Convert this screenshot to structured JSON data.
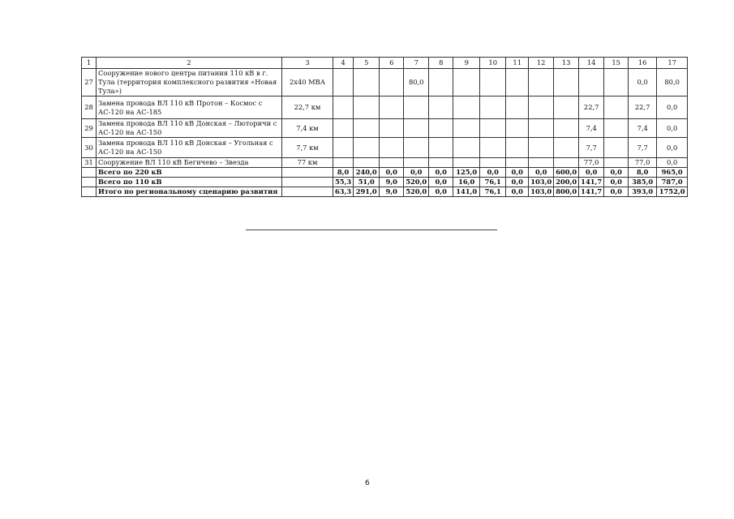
{
  "table": {
    "header": [
      "1",
      "2",
      "3",
      "4",
      "5",
      "6",
      "7",
      "8",
      "9",
      "10",
      "11",
      "12",
      "13",
      "14",
      "15",
      "16",
      "17"
    ],
    "rows": [
      [
        "27",
        "Сооружение  нового центра питания 110 кВ в г. Тула (территория комплексного развития «Новая Тула»)",
        "2х40 МВА",
        "",
        "",
        "",
        "80,0",
        "",
        "",
        "",
        "",
        "",
        "",
        "",
        "",
        "0,0",
        "80,0"
      ],
      [
        "28",
        "Замена провода ВЛ 110 кВ Протон – Космос с АС-120 на АС-185",
        "22,7 км",
        "",
        "",
        "",
        "",
        "",
        "",
        "",
        "",
        "",
        "",
        "22,7",
        "",
        "22,7",
        "0,0"
      ],
      [
        "29",
        "Замена провода ВЛ 110 кВ Донская – Люторичи с АС-120 на АС-150",
        "7,4 км",
        "",
        "",
        "",
        "",
        "",
        "",
        "",
        "",
        "",
        "",
        "7,4",
        "",
        "7,4",
        "0,0"
      ],
      [
        "30",
        "Замена провода ВЛ 110 кВ Донская – Угольная с АС-120 на АС-150",
        "7,7 км",
        "",
        "",
        "",
        "",
        "",
        "",
        "",
        "",
        "",
        "",
        "7,7",
        "",
        "7,7",
        "0,0"
      ],
      [
        "31",
        "Сооружение ВЛ 110 кВ Бегичево – Звезда",
        "77 км",
        "",
        "",
        "",
        "",
        "",
        "",
        "",
        "",
        "",
        "",
        "77,0",
        "",
        "77,0",
        "0,0"
      ]
    ],
    "totals": [
      [
        "",
        "Всего по 220 кВ",
        "",
        "8,0",
        "240,0",
        "0,0",
        "0,0",
        "0,0",
        "125,0",
        "0,0",
        "0,0",
        "0,0",
        "600,0",
        "0,0",
        "0,0",
        "8,0",
        "965,0"
      ],
      [
        "",
        "Всего по 110 кВ",
        "",
        "55,3",
        "51,0",
        "9,0",
        "520,0",
        "0,0",
        "16,0",
        "76,1",
        "0,0",
        "103,0",
        "200,0",
        "141,7",
        "0,0",
        "385,0",
        "787,0"
      ],
      [
        "",
        "Итого по региональному сценарию развития",
        "",
        "63,3",
        "291,0",
        "9,0",
        "520,0",
        "0,0",
        "141,0",
        "76,1",
        "0,0",
        "103,0",
        "800,0",
        "141,7",
        "0,0",
        "393,0",
        "1752,0"
      ]
    ]
  },
  "page_number": "6"
}
